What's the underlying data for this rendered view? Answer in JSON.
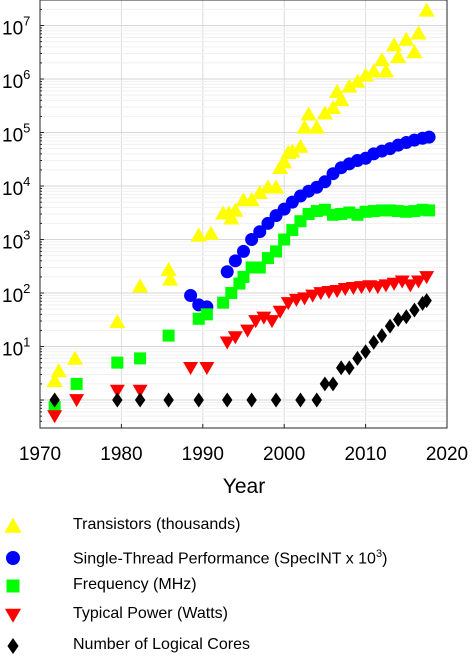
{
  "chart_data": {
    "type": "scatter",
    "xlabel": "Year",
    "ylabel": "",
    "title": "",
    "x_scale": "linear",
    "y_scale": "log",
    "xlim": [
      1970,
      2020
    ],
    "ylim": [
      0.3,
      30000000
    ],
    "x_ticks": [
      "1970",
      "1980",
      "1990",
      "2000",
      "2010",
      "2020"
    ],
    "y_ticks": [
      {
        "value": 10,
        "label": "10",
        "exp": "1"
      },
      {
        "value": 100,
        "label": "10",
        "exp": "2"
      },
      {
        "value": 1000,
        "label": "10",
        "exp": "3"
      },
      {
        "value": 10000,
        "label": "10",
        "exp": "4"
      },
      {
        "value": 100000,
        "label": "10",
        "exp": "5"
      },
      {
        "value": 1000000,
        "label": "10",
        "exp": "6"
      },
      {
        "value": 10000000,
        "label": "10",
        "exp": "7"
      }
    ],
    "grid": true,
    "legend_position": "bottom",
    "series": [
      {
        "name": "Transistors (thousands)",
        "marker": "triangle-up",
        "color": "#FFFF00",
        "points": [
          [
            1971.8,
            2.3
          ],
          [
            1972.3,
            3.5
          ],
          [
            1974.3,
            6
          ],
          [
            1979.5,
            29
          ],
          [
            1982.3,
            134
          ],
          [
            1985.8,
            275
          ],
          [
            1986.0,
            180
          ],
          [
            1989.5,
            1200
          ],
          [
            1991.0,
            1300
          ],
          [
            1992.5,
            3100
          ],
          [
            1993.2,
            3100
          ],
          [
            1993.5,
            2500
          ],
          [
            1994.0,
            3500
          ],
          [
            1995.0,
            5500
          ],
          [
            1996.0,
            5500
          ],
          [
            1997.0,
            7500
          ],
          [
            1998.0,
            9500
          ],
          [
            1999.0,
            9500
          ],
          [
            1999.5,
            22000
          ],
          [
            2000.0,
            28000
          ],
          [
            2000.5,
            42000
          ],
          [
            2001.0,
            45000
          ],
          [
            2002.0,
            55000
          ],
          [
            2002.5,
            125000
          ],
          [
            2003.0,
            220000
          ],
          [
            2004.0,
            125000
          ],
          [
            2005.0,
            230000
          ],
          [
            2006.0,
            290000
          ],
          [
            2006.5,
            580000
          ],
          [
            2007.0,
            410000
          ],
          [
            2008.0,
            730000
          ],
          [
            2009.0,
            900000
          ],
          [
            2010.0,
            1170000
          ],
          [
            2011.0,
            1400000
          ],
          [
            2012.0,
            2270000
          ],
          [
            2012.5,
            1400000
          ],
          [
            2013.5,
            4300000
          ],
          [
            2014.0,
            2600000
          ],
          [
            2015.0,
            5500000
          ],
          [
            2016.0,
            3200000
          ],
          [
            2016.5,
            7200000
          ],
          [
            2017.5,
            19200000
          ]
        ]
      },
      {
        "name": "Single-Thread Performance (SpecINT x 10^3)",
        "name_text": "Single-Thread Performance (SpecINT x 10",
        "name_sup": "3",
        "name_suffix": ")",
        "marker": "circle",
        "color": "#0000FF",
        "points": [
          [
            1988.5,
            90
          ],
          [
            1989.5,
            60
          ],
          [
            1990.5,
            55
          ],
          [
            1993.0,
            250
          ],
          [
            1994.0,
            400
          ],
          [
            1995.0,
            600
          ],
          [
            1996.0,
            1000
          ],
          [
            1997.0,
            1400
          ],
          [
            1998.0,
            2000
          ],
          [
            1999.0,
            2800
          ],
          [
            2000.0,
            3700
          ],
          [
            2001.0,
            5000
          ],
          [
            2002.0,
            6500
          ],
          [
            2003.0,
            8000
          ],
          [
            2004.0,
            9500
          ],
          [
            2005.0,
            12000
          ],
          [
            2006.0,
            17000
          ],
          [
            2007.0,
            22000
          ],
          [
            2008.0,
            26000
          ],
          [
            2009.0,
            30000
          ],
          [
            2010.0,
            33000
          ],
          [
            2011.0,
            40000
          ],
          [
            2012.0,
            45000
          ],
          [
            2013.0,
            50000
          ],
          [
            2014.0,
            58000
          ],
          [
            2015.0,
            65000
          ],
          [
            2016.0,
            72000
          ],
          [
            2017.0,
            78000
          ],
          [
            2017.8,
            82000
          ]
        ]
      },
      {
        "name": "Frequency (MHz)",
        "marker": "square",
        "color": "#00FF00",
        "points": [
          [
            1971.8,
            0.74
          ],
          [
            1974.5,
            2
          ],
          [
            1979.5,
            5
          ],
          [
            1982.3,
            6
          ],
          [
            1985.8,
            16
          ],
          [
            1989.5,
            33
          ],
          [
            1990.5,
            40
          ],
          [
            1992.5,
            66
          ],
          [
            1993.5,
            100
          ],
          [
            1994.5,
            150
          ],
          [
            1995.0,
            200
          ],
          [
            1996.0,
            300
          ],
          [
            1997.0,
            300
          ],
          [
            1998.0,
            450
          ],
          [
            1999.0,
            600
          ],
          [
            2000.0,
            1000
          ],
          [
            2001.0,
            1500
          ],
          [
            2002.0,
            2200
          ],
          [
            2003.0,
            3000
          ],
          [
            2004.0,
            3400
          ],
          [
            2005.0,
            3600
          ],
          [
            2006.0,
            2900
          ],
          [
            2007.0,
            3000
          ],
          [
            2008.0,
            3200
          ],
          [
            2009.0,
            2900
          ],
          [
            2010.0,
            3300
          ],
          [
            2011.0,
            3400
          ],
          [
            2012.0,
            3500
          ],
          [
            2013.0,
            3500
          ],
          [
            2014.0,
            3400
          ],
          [
            2015.0,
            3300
          ],
          [
            2016.0,
            3400
          ],
          [
            2017.0,
            3600
          ],
          [
            2017.8,
            3500
          ]
        ]
      },
      {
        "name": "Typical Power (Watts)",
        "marker": "triangle-down",
        "color": "#FF0000",
        "points": [
          [
            1971.8,
            0.5
          ],
          [
            1974.5,
            1
          ],
          [
            1979.5,
            1.5
          ],
          [
            1982.3,
            1.5
          ],
          [
            1988.5,
            4
          ],
          [
            1990.5,
            4
          ],
          [
            1993.0,
            12
          ],
          [
            1994.0,
            15
          ],
          [
            1995.5,
            20
          ],
          [
            1996.5,
            30
          ],
          [
            1997.5,
            35
          ],
          [
            1998.5,
            30
          ],
          [
            1999.5,
            45
          ],
          [
            2000.5,
            65
          ],
          [
            2001.5,
            75
          ],
          [
            2002.5,
            80
          ],
          [
            2003.5,
            90
          ],
          [
            2004.5,
            100
          ],
          [
            2005.5,
            105
          ],
          [
            2006.5,
            110
          ],
          [
            2007.5,
            120
          ],
          [
            2008.5,
            125
          ],
          [
            2009.5,
            130
          ],
          [
            2010.5,
            135
          ],
          [
            2011.5,
            130
          ],
          [
            2012.5,
            140
          ],
          [
            2013.5,
            150
          ],
          [
            2014.5,
            165
          ],
          [
            2015.5,
            140
          ],
          [
            2016.5,
            165
          ],
          [
            2017.5,
            200
          ]
        ]
      },
      {
        "name": "Number of Logical Cores",
        "marker": "diamond",
        "color": "#000000",
        "points": [
          [
            1971.8,
            1
          ],
          [
            1979.5,
            1
          ],
          [
            1982.3,
            1
          ],
          [
            1985.8,
            1
          ],
          [
            1989.5,
            1
          ],
          [
            1993.0,
            1
          ],
          [
            1996.0,
            1
          ],
          [
            1999.0,
            1
          ],
          [
            2002.0,
            1
          ],
          [
            2004.0,
            1
          ],
          [
            2005.0,
            2
          ],
          [
            2006.0,
            2
          ],
          [
            2007.0,
            4
          ],
          [
            2008.0,
            4
          ],
          [
            2009.0,
            6
          ],
          [
            2010.0,
            8
          ],
          [
            2011.0,
            12
          ],
          [
            2012.0,
            16
          ],
          [
            2013.0,
            24
          ],
          [
            2014.0,
            32
          ],
          [
            2015.0,
            36
          ],
          [
            2016.0,
            48
          ],
          [
            2017.0,
            64
          ],
          [
            2017.5,
            72
          ]
        ]
      }
    ]
  }
}
